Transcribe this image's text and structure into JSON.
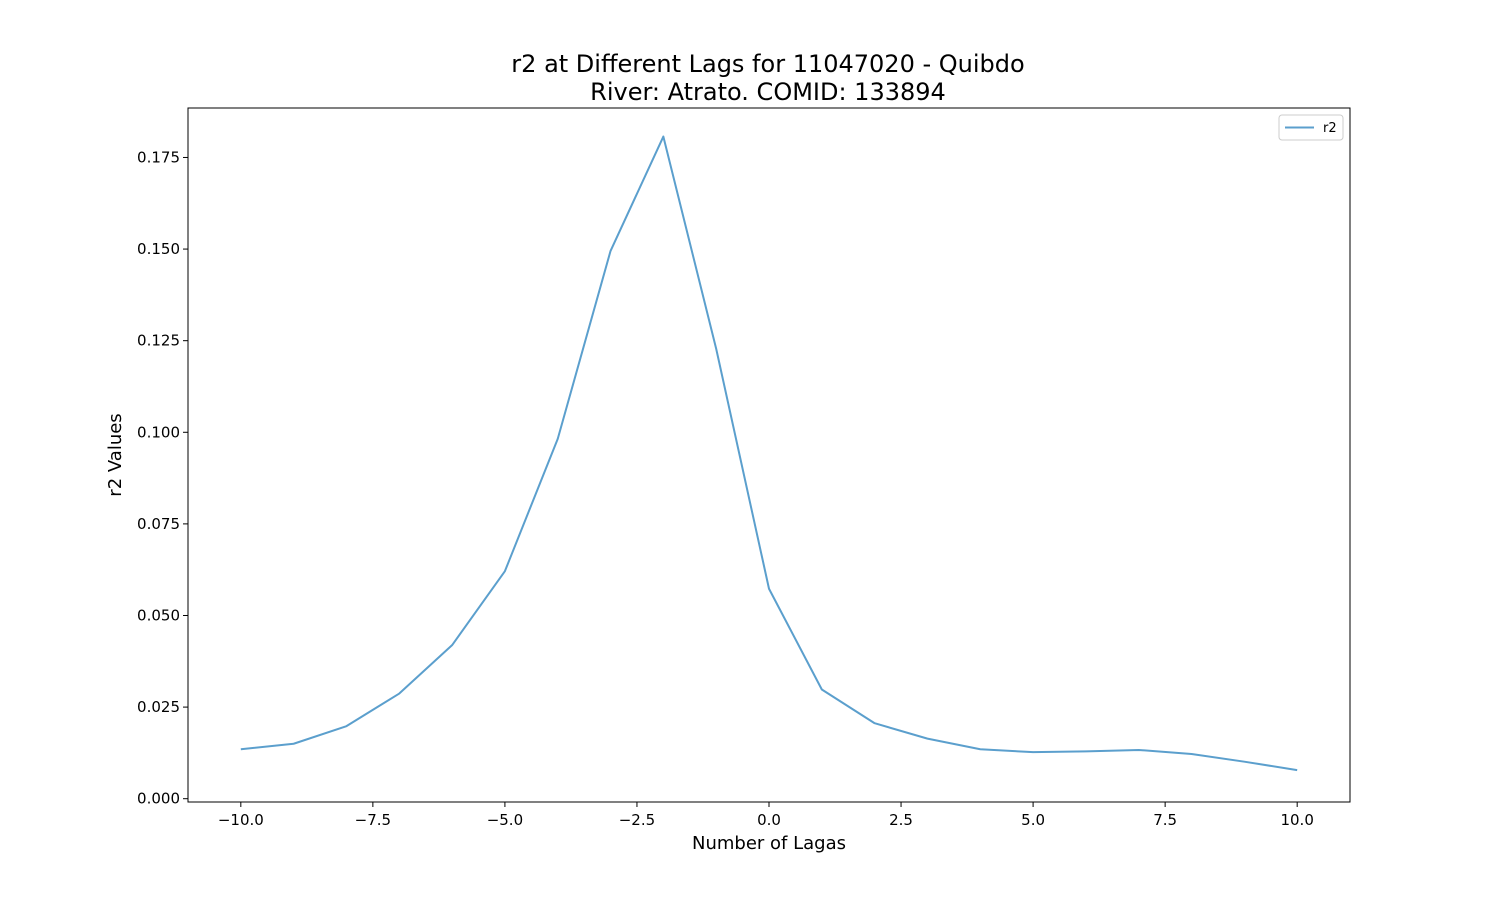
{
  "chart_data": {
    "type": "line",
    "title_line1": "r2 at Different Lags for 11047020 - Quibdo",
    "title_line2": "River: Atrato. COMID: 133894",
    "xlabel": "Number of Lagas",
    "ylabel": "r2 Values",
    "xlim": [
      -11,
      11
    ],
    "ylim": [
      -0.0009,
      0.1885
    ],
    "x_ticks": [
      -10,
      -7.5,
      -5,
      -2.5,
      0,
      2.5,
      5,
      7.5,
      10
    ],
    "x_tick_labels": [
      "−10.0",
      "−7.5",
      "−5.0",
      "−2.5",
      "0.0",
      "2.5",
      "5.0",
      "7.5",
      "10.0"
    ],
    "y_ticks": [
      0,
      0.025,
      0.05,
      0.075,
      0.1,
      0.125,
      0.15,
      0.175
    ],
    "y_tick_labels": [
      "0.000",
      "0.025",
      "0.050",
      "0.075",
      "0.100",
      "0.125",
      "0.150",
      "0.175"
    ],
    "grid": false,
    "legend_position": "top-right",
    "series": [
      {
        "name": "r2",
        "color": "#5b9fcd",
        "x": [
          -10,
          -9,
          -8,
          -7,
          -6,
          -5,
          -4,
          -3,
          -2,
          -1,
          0,
          1,
          2,
          3,
          4,
          5,
          6,
          7,
          8,
          9,
          10
        ],
        "values": [
          0.0135,
          0.015,
          0.0198,
          0.0287,
          0.0419,
          0.0621,
          0.0982,
          0.1495,
          0.1807,
          0.1228,
          0.0573,
          0.0298,
          0.0206,
          0.0164,
          0.0135,
          0.0127,
          0.0129,
          0.0133,
          0.0122,
          0.0101,
          0.0078
        ]
      }
    ]
  }
}
